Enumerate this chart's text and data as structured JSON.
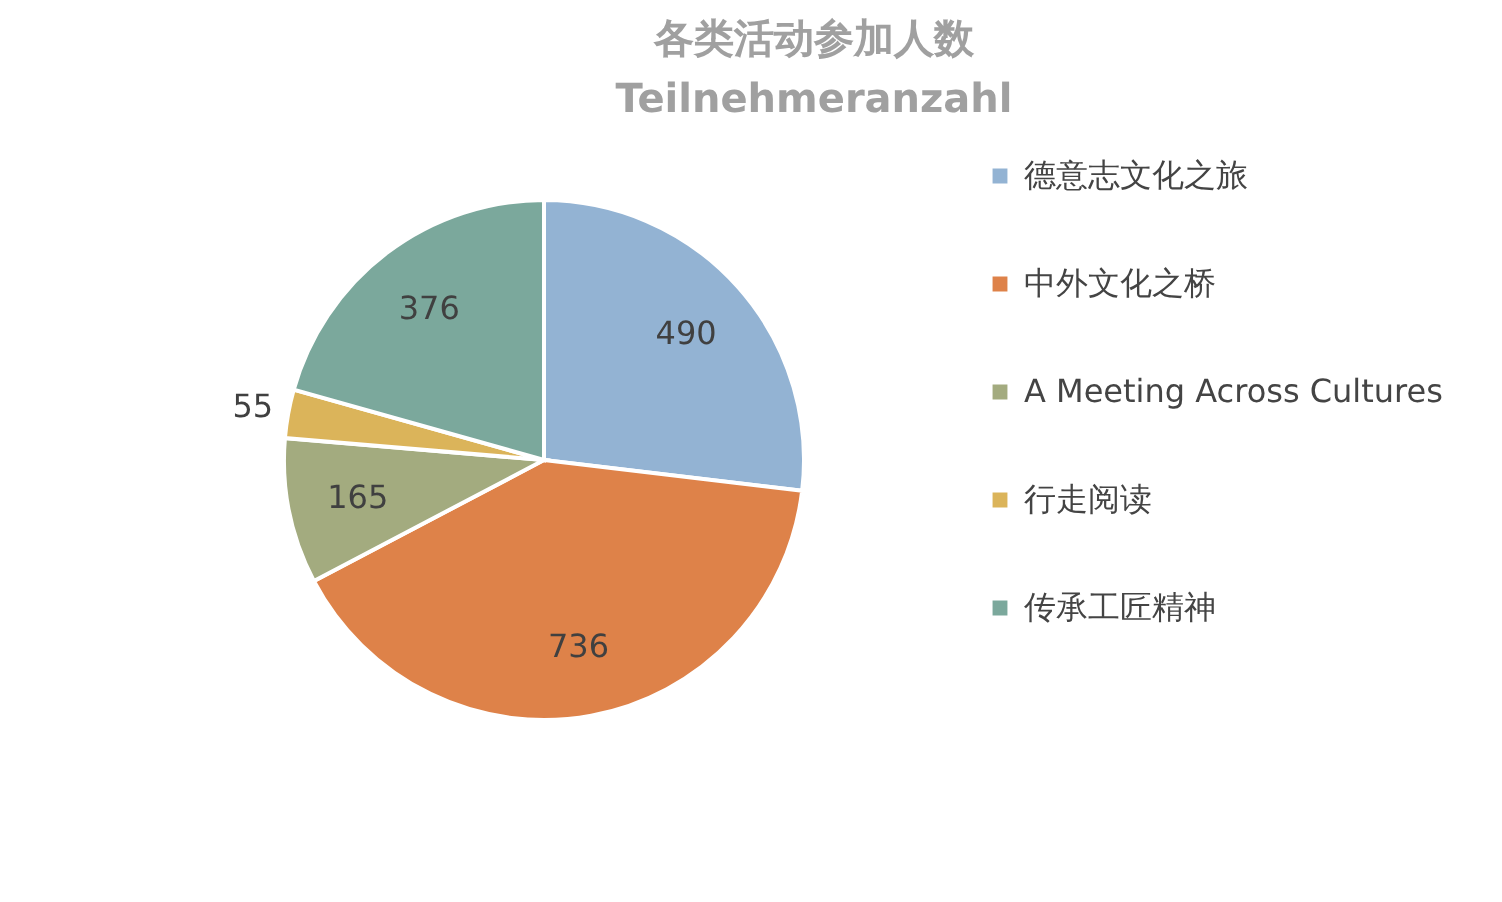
{
  "chart_data": {
    "type": "pie",
    "title": "各类活动参加人数",
    "subtitle": "Teilnehmeranzahl",
    "categories": [
      "德意志文化之旅",
      "中外文化之桥",
      "A Meeting Across Cultures",
      "行走阅读",
      "传承工匠精神"
    ],
    "values": [
      490,
      736,
      165,
      55,
      376
    ],
    "colors": [
      "#93b3d3",
      "#de8249",
      "#a3ab7f",
      "#dbb45a",
      "#7ba89c"
    ],
    "data_labels": true,
    "legend": "right"
  }
}
